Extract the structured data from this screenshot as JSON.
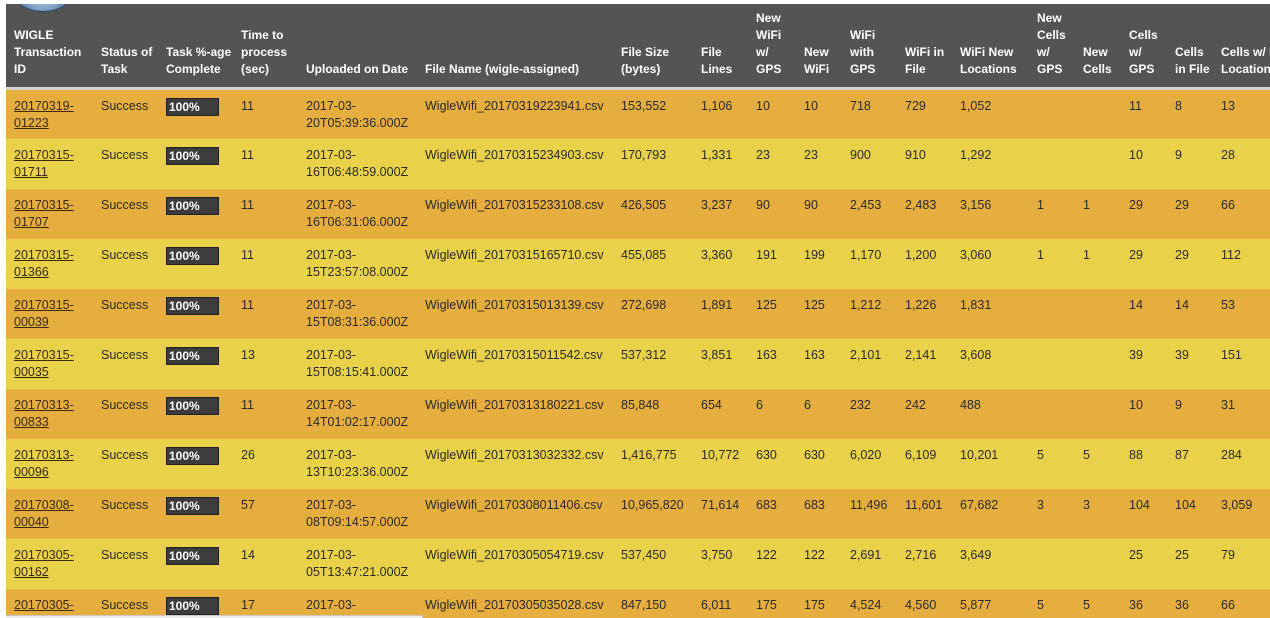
{
  "table": {
    "headers": [
      "WIGLE Transaction ID",
      "Status of Task",
      "Task %-age Complete",
      "Time to process (sec)",
      "Uploaded on Date",
      "File Name (wigle-assigned)",
      "File Size (bytes)",
      "File Lines",
      "New WiFi w/ GPS",
      "New WiFi",
      "WiFi with GPS",
      "WiFi in File",
      "WiFi New Locations",
      "New Cells w/ GPS",
      "New Cells",
      "Cells w/ GPS",
      "Cells in File",
      "Cells w/ New Locations"
    ],
    "rows": [
      {
        "id": "20170319-01223",
        "status": "Success",
        "pct": "100%",
        "time": "11",
        "date": "2017-03-20T05:39:36.000Z",
        "file": "WigleWifi_20170319223941.csv",
        "size": "153,552",
        "lines": "1,106",
        "new_wifi_gps": "10",
        "new_wifi": "10",
        "wifi_gps": "718",
        "wifi_file": "729",
        "wifi_new_loc": "1,052",
        "new_cells_gps": "",
        "new_cells": "",
        "cells_gps": "11",
        "cells_file": "8",
        "cells_new_loc": "13"
      },
      {
        "id": "20170315-01711",
        "status": "Success",
        "pct": "100%",
        "time": "11",
        "date": "2017-03-16T06:48:59.000Z",
        "file": "WigleWifi_20170315234903.csv",
        "size": "170,793",
        "lines": "1,331",
        "new_wifi_gps": "23",
        "new_wifi": "23",
        "wifi_gps": "900",
        "wifi_file": "910",
        "wifi_new_loc": "1,292",
        "new_cells_gps": "",
        "new_cells": "",
        "cells_gps": "10",
        "cells_file": "9",
        "cells_new_loc": "28"
      },
      {
        "id": "20170315-01707",
        "status": "Success",
        "pct": "100%",
        "time": "11",
        "date": "2017-03-16T06:31:06.000Z",
        "file": "WigleWifi_20170315233108.csv",
        "size": "426,505",
        "lines": "3,237",
        "new_wifi_gps": "90",
        "new_wifi": "90",
        "wifi_gps": "2,453",
        "wifi_file": "2,483",
        "wifi_new_loc": "3,156",
        "new_cells_gps": "1",
        "new_cells": "1",
        "cells_gps": "29",
        "cells_file": "29",
        "cells_new_loc": "66"
      },
      {
        "id": "20170315-01366",
        "status": "Success",
        "pct": "100%",
        "time": "11",
        "date": "2017-03-15T23:57:08.000Z",
        "file": "WigleWifi_20170315165710.csv",
        "size": "455,085",
        "lines": "3,360",
        "new_wifi_gps": "191",
        "new_wifi": "199",
        "wifi_gps": "1,170",
        "wifi_file": "1,200",
        "wifi_new_loc": "3,060",
        "new_cells_gps": "1",
        "new_cells": "1",
        "cells_gps": "29",
        "cells_file": "29",
        "cells_new_loc": "112"
      },
      {
        "id": "20170315-00039",
        "status": "Success",
        "pct": "100%",
        "time": "11",
        "date": "2017-03-15T08:31:36.000Z",
        "file": "WigleWifi_20170315013139.csv",
        "size": "272,698",
        "lines": "1,891",
        "new_wifi_gps": "125",
        "new_wifi": "125",
        "wifi_gps": "1,212",
        "wifi_file": "1,226",
        "wifi_new_loc": "1,831",
        "new_cells_gps": "",
        "new_cells": "",
        "cells_gps": "14",
        "cells_file": "14",
        "cells_new_loc": "53"
      },
      {
        "id": "20170315-00035",
        "status": "Success",
        "pct": "100%",
        "time": "13",
        "date": "2017-03-15T08:15:41.000Z",
        "file": "WigleWifi_20170315011542.csv",
        "size": "537,312",
        "lines": "3,851",
        "new_wifi_gps": "163",
        "new_wifi": "163",
        "wifi_gps": "2,101",
        "wifi_file": "2,141",
        "wifi_new_loc": "3,608",
        "new_cells_gps": "",
        "new_cells": "",
        "cells_gps": "39",
        "cells_file": "39",
        "cells_new_loc": "151"
      },
      {
        "id": "20170313-00833",
        "status": "Success",
        "pct": "100%",
        "time": "11",
        "date": "2017-03-14T01:02:17.000Z",
        "file": "WigleWifi_20170313180221.csv",
        "size": "85,848",
        "lines": "654",
        "new_wifi_gps": "6",
        "new_wifi": "6",
        "wifi_gps": "232",
        "wifi_file": "242",
        "wifi_new_loc": "488",
        "new_cells_gps": "",
        "new_cells": "",
        "cells_gps": "10",
        "cells_file": "9",
        "cells_new_loc": "31"
      },
      {
        "id": "20170313-00096",
        "status": "Success",
        "pct": "100%",
        "time": "26",
        "date": "2017-03-13T10:23:36.000Z",
        "file": "WigleWifi_20170313032332.csv",
        "size": "1,416,775",
        "lines": "10,772",
        "new_wifi_gps": "630",
        "new_wifi": "630",
        "wifi_gps": "6,020",
        "wifi_file": "6,109",
        "wifi_new_loc": "10,201",
        "new_cells_gps": "5",
        "new_cells": "5",
        "cells_gps": "88",
        "cells_file": "87",
        "cells_new_loc": "284"
      },
      {
        "id": "20170308-00040",
        "status": "Success",
        "pct": "100%",
        "time": "57",
        "date": "2017-03-08T09:14:57.000Z",
        "file": "WigleWifi_20170308011406.csv",
        "size": "10,965,820",
        "lines": "71,614",
        "new_wifi_gps": "683",
        "new_wifi": "683",
        "wifi_gps": "11,496",
        "wifi_file": "11,601",
        "wifi_new_loc": "67,682",
        "new_cells_gps": "3",
        "new_cells": "3",
        "cells_gps": "104",
        "cells_file": "104",
        "cells_new_loc": "3,059"
      },
      {
        "id": "20170305-00162",
        "status": "Success",
        "pct": "100%",
        "time": "14",
        "date": "2017-03-05T13:47:21.000Z",
        "file": "WigleWifi_20170305054719.csv",
        "size": "537,450",
        "lines": "3,750",
        "new_wifi_gps": "122",
        "new_wifi": "122",
        "wifi_gps": "2,691",
        "wifi_file": "2,716",
        "wifi_new_loc": "3,649",
        "new_cells_gps": "",
        "new_cells": "",
        "cells_gps": "25",
        "cells_file": "25",
        "cells_new_loc": "79"
      },
      {
        "id": "20170305-",
        "status": "Success",
        "pct": "100%",
        "time": "17",
        "date": "2017-03-",
        "file": "WigleWifi_20170305035028.csv",
        "size": "847,150",
        "lines": "6,011",
        "new_wifi_gps": "175",
        "new_wifi": "175",
        "wifi_gps": "4,524",
        "wifi_file": "4,560",
        "wifi_new_loc": "5,877",
        "new_cells_gps": "5",
        "new_cells": "5",
        "cells_gps": "36",
        "cells_file": "36",
        "cells_new_loc": "66"
      }
    ]
  },
  "colors": {
    "header_bg": "#545454",
    "row_a": "#e5ae3f",
    "row_b": "#e9d24a",
    "progress_bg": "#3c3c3c"
  },
  "icons": {
    "logo": "wigle-globe-logo"
  }
}
